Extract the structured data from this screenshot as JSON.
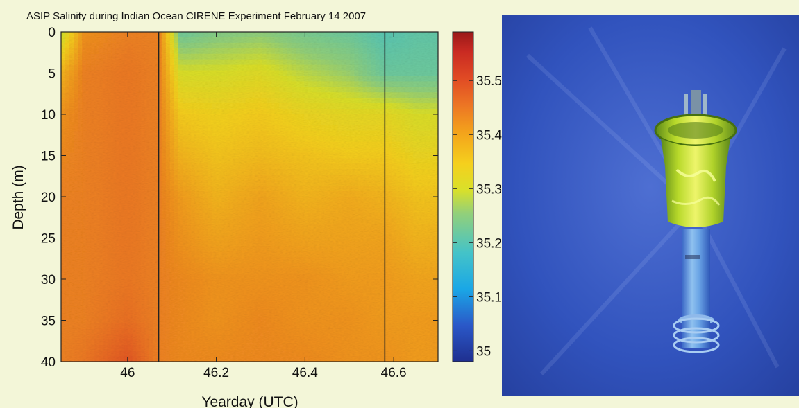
{
  "chart_data": {
    "type": "heatmap",
    "title": "ASIP Salinity during Indian Ocean CIRENE Experiment February 14 2007",
    "xlabel": "Yearday (UTC)",
    "ylabel": "Depth (m)",
    "xlim": [
      45.85,
      46.7
    ],
    "ylim": [
      40,
      0
    ],
    "x_ticks": [
      "46",
      "46.2",
      "46.4",
      "46.6"
    ],
    "x_tick_values": [
      46.0,
      46.2,
      46.4,
      46.6
    ],
    "y_ticks": [
      "0",
      "5",
      "10",
      "15",
      "20",
      "25",
      "30",
      "35",
      "40"
    ],
    "y_tick_values": [
      0,
      5,
      10,
      15,
      20,
      25,
      30,
      35,
      40
    ],
    "colorbar": {
      "range": [
        34.98,
        35.59
      ],
      "ticks": [
        "35",
        "35.1",
        "35.2",
        "35.3",
        "35.4",
        "35.5"
      ],
      "tick_values": [
        35.0,
        35.1,
        35.2,
        35.3,
        35.4,
        35.5
      ],
      "colormap": "jet"
    },
    "vertical_lines": [
      46.07,
      46.58
    ],
    "approx_field": {
      "x": [
        45.85,
        45.9,
        46.0,
        46.07,
        46.12,
        46.2,
        46.3,
        46.4,
        46.5,
        46.58,
        46.65,
        46.7
      ],
      "depth": [
        0,
        5,
        10,
        15,
        20,
        25,
        30,
        35,
        40
      ],
      "salinity": [
        [
          35.28,
          35.42,
          35.44,
          35.44,
          35.22,
          35.24,
          35.25,
          35.23,
          35.22,
          35.2,
          35.21,
          35.21
        ],
        [
          35.38,
          35.44,
          35.45,
          35.44,
          35.3,
          35.3,
          35.31,
          35.28,
          35.26,
          35.22,
          35.22,
          35.22
        ],
        [
          35.42,
          35.44,
          35.45,
          35.44,
          35.35,
          35.34,
          35.35,
          35.33,
          35.32,
          35.32,
          35.3,
          35.3
        ],
        [
          35.43,
          35.44,
          35.45,
          35.44,
          35.38,
          35.36,
          35.37,
          35.36,
          35.35,
          35.35,
          35.33,
          35.33
        ],
        [
          35.44,
          35.44,
          35.45,
          35.44,
          35.41,
          35.38,
          35.4,
          35.38,
          35.39,
          35.38,
          35.36,
          35.36
        ],
        [
          35.44,
          35.44,
          35.45,
          35.44,
          35.42,
          35.4,
          35.41,
          35.4,
          35.4,
          35.4,
          35.38,
          35.38
        ],
        [
          35.44,
          35.44,
          35.45,
          35.44,
          35.43,
          35.42,
          35.42,
          35.42,
          35.41,
          35.41,
          35.4,
          35.4
        ],
        [
          35.44,
          35.44,
          35.46,
          35.44,
          35.43,
          35.42,
          35.43,
          35.42,
          35.42,
          35.41,
          35.41,
          35.41
        ],
        [
          35.44,
          35.45,
          35.49,
          35.44,
          35.43,
          35.43,
          35.43,
          35.43,
          35.42,
          35.42,
          35.41,
          35.41
        ]
      ]
    }
  },
  "photo": {
    "icon": "asip-instrument-icon",
    "background_color": "#2e4ab6"
  }
}
